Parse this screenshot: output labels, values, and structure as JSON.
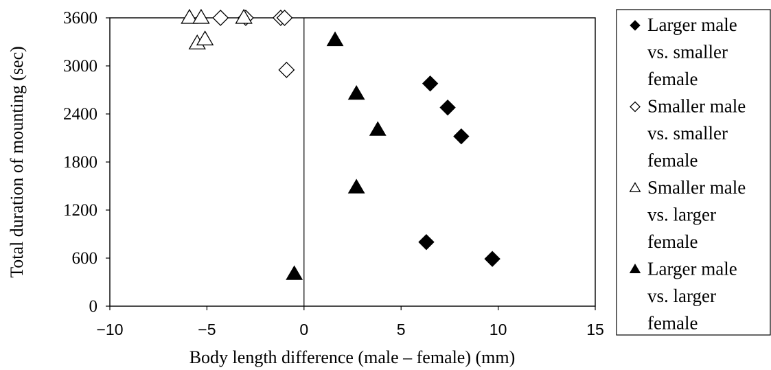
{
  "chart_data": {
    "type": "scatter",
    "xlabel": "Body length difference (male – female) (mm)",
    "ylabel": "Total duration of mounting (sec)",
    "xlim": [
      -10,
      15
    ],
    "ylim": [
      0,
      3600
    ],
    "x_ticks": [
      -10,
      -5,
      0,
      5,
      10,
      15
    ],
    "y_ticks": [
      0,
      600,
      1200,
      1800,
      2400,
      3000,
      3600
    ],
    "x_tick_labels": [
      "−10",
      "−5",
      "0",
      "5",
      "10",
      "15"
    ],
    "y_tick_labels": [
      "0",
      "600",
      "1200",
      "1800",
      "2400",
      "3000",
      "3600"
    ],
    "grid": false,
    "reference_line_x": 0,
    "legend_position": "right",
    "series": [
      {
        "name": "Larger male vs. smaller female",
        "legend_lines": [
          "Larger male",
          "vs. smaller",
          "female"
        ],
        "marker": "diamond",
        "filled": true,
        "color": "#000000",
        "points": [
          [
            6.5,
            2780
          ],
          [
            7.4,
            2480
          ],
          [
            8.1,
            2120
          ],
          [
            6.3,
            800
          ],
          [
            9.7,
            590
          ]
        ]
      },
      {
        "name": "Smaller male vs. smaller female",
        "legend_lines": [
          "Smaller male",
          "vs. smaller",
          "female"
        ],
        "marker": "diamond",
        "filled": false,
        "color": "#000000",
        "points": [
          [
            -4.3,
            3600
          ],
          [
            -3.0,
            3600
          ],
          [
            -1.2,
            3600
          ],
          [
            -1.0,
            3600
          ],
          [
            -0.9,
            2950
          ]
        ]
      },
      {
        "name": "Smaller male vs. larger female",
        "legend_lines": [
          "Smaller male",
          "vs. larger",
          "female"
        ],
        "marker": "triangle",
        "filled": false,
        "color": "#000000",
        "points": [
          [
            -5.9,
            3600
          ],
          [
            -5.3,
            3600
          ],
          [
            -3.1,
            3600
          ],
          [
            -5.5,
            3280
          ],
          [
            -5.1,
            3330
          ]
        ]
      },
      {
        "name": "Larger male vs. larger female",
        "legend_lines": [
          "Larger male",
          "vs. larger",
          "female"
        ],
        "marker": "triangle",
        "filled": true,
        "color": "#000000",
        "points": [
          [
            1.6,
            3320
          ],
          [
            2.7,
            2650
          ],
          [
            3.8,
            2200
          ],
          [
            2.7,
            1480
          ],
          [
            -0.5,
            400
          ]
        ]
      }
    ]
  }
}
